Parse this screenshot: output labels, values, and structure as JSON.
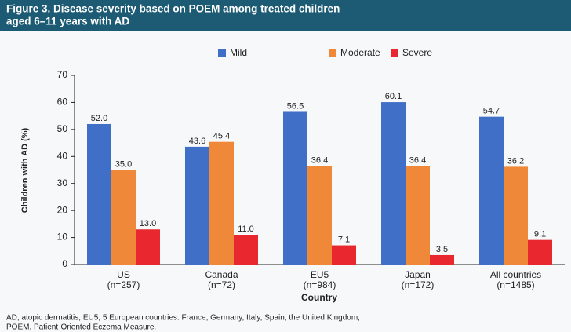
{
  "chart_data": {
    "type": "bar",
    "title": [
      "Figure 3. Disease severity based on POEM among treated children",
      "aged 6–11 years with AD"
    ],
    "categories": [
      [
        "US",
        "(n=257)"
      ],
      [
        "Canada",
        "(n=72)"
      ],
      [
        "EU5",
        "(n=984)"
      ],
      [
        "Japan",
        "(n=172)"
      ],
      [
        "All countries",
        "(n=1485)"
      ]
    ],
    "series": [
      {
        "name": "Mild",
        "color": "#3f6fc6",
        "values": [
          52.0,
          43.6,
          56.5,
          60.1,
          54.7
        ],
        "value_labels": [
          "52.0",
          "43.6",
          "56.5",
          "60.1",
          "54.7"
        ]
      },
      {
        "name": "Moderate",
        "color": "#f0883a",
        "values": [
          35.0,
          45.4,
          36.4,
          36.4,
          36.2
        ],
        "value_labels": [
          "35.0",
          "45.4",
          "36.4",
          "36.4",
          "36.2"
        ]
      },
      {
        "name": "Severe",
        "color": "#e8282e",
        "values": [
          13.0,
          11.0,
          7.1,
          3.5,
          9.1
        ],
        "value_labels": [
          "13.0",
          "11.0",
          "7.1",
          "3.5",
          "9.1"
        ]
      }
    ],
    "xlabel": "Country",
    "ylabel": "Children with AD (%)",
    "ylim": [
      0,
      70
    ],
    "yticks": [
      0,
      10,
      20,
      30,
      40,
      50,
      60,
      70
    ],
    "grid": false,
    "legend": "top",
    "footnote": [
      "AD, atopic dermatitis; EU5, 5 European countries: France, Germany, Italy, Spain, the United Kingdom;",
      "POEM, Patient-Oriented Eczema Measure."
    ]
  }
}
